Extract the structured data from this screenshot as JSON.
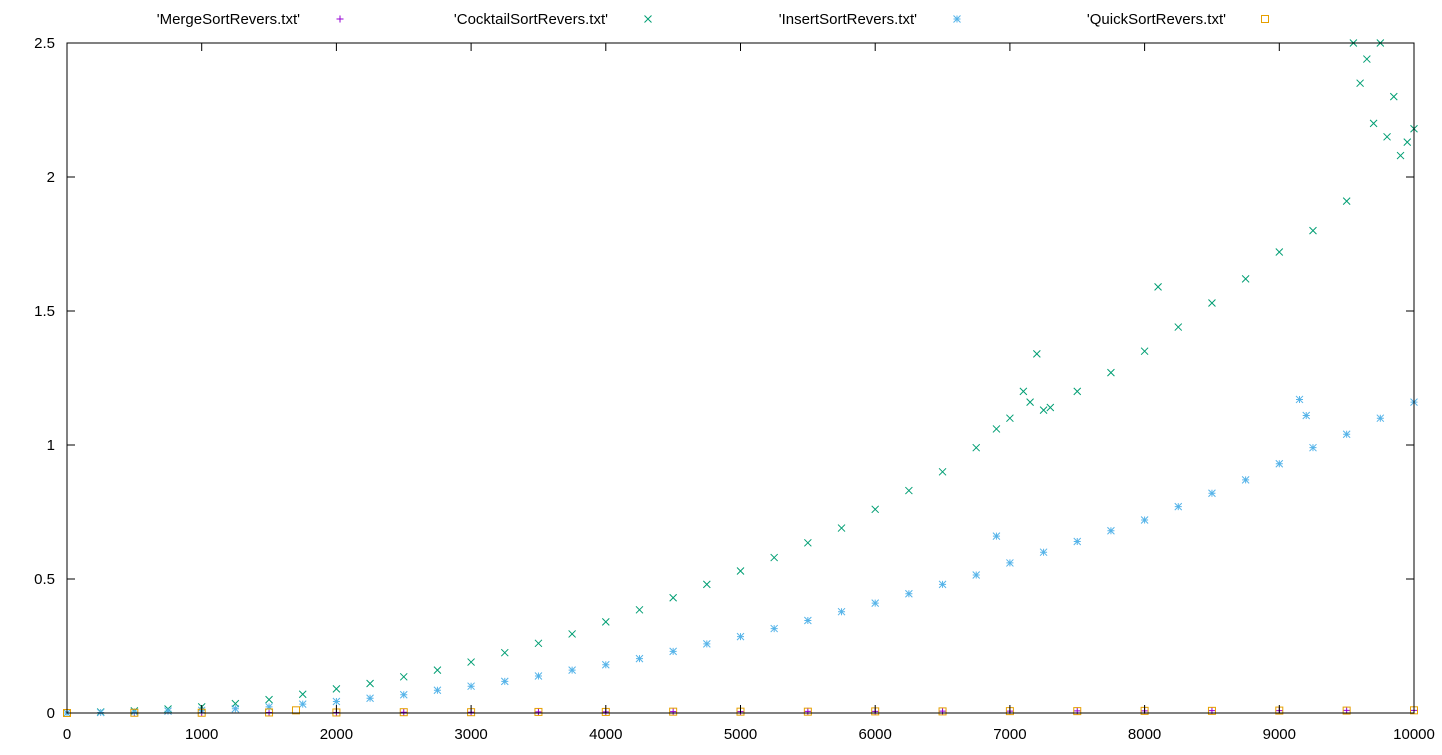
{
  "chart_data": {
    "type": "scatter",
    "xlim": [
      0,
      10000
    ],
    "ylim": [
      0,
      2.5
    ],
    "x_ticks": [
      0,
      1000,
      2000,
      3000,
      4000,
      5000,
      6000,
      7000,
      8000,
      9000,
      10000
    ],
    "y_ticks": [
      0,
      0.5,
      1,
      1.5,
      2,
      2.5
    ],
    "x_tick_labels": [
      "0",
      "1000",
      "2000",
      "3000",
      "4000",
      "5000",
      "6000",
      "7000",
      "8000",
      "9000",
      "10000"
    ],
    "y_tick_labels": [
      "0",
      "0.5",
      "1",
      "1.5",
      "2",
      "2.5"
    ],
    "grid": false,
    "legend_position": "top",
    "series": [
      {
        "name": "'MergeSortRevers.txt'",
        "marker": "plus",
        "color": "#9400d3",
        "x": [
          0,
          500,
          1000,
          1500,
          2000,
          2500,
          3000,
          3500,
          4000,
          4500,
          5000,
          5500,
          6000,
          6500,
          7000,
          7500,
          8000,
          8500,
          9000,
          9500,
          10000
        ],
        "y": [
          0,
          0.001,
          0.001,
          0.002,
          0.002,
          0.003,
          0.003,
          0.004,
          0.004,
          0.005,
          0.005,
          0.006,
          0.006,
          0.007,
          0.007,
          0.008,
          0.008,
          0.009,
          0.009,
          0.01,
          0.01
        ]
      },
      {
        "name": "'CocktailSortRevers.txt'",
        "marker": "cross",
        "color": "#009e73",
        "x": [
          0,
          250,
          500,
          750,
          1000,
          1250,
          1500,
          1750,
          2000,
          2250,
          2500,
          2750,
          3000,
          3250,
          3500,
          3750,
          4000,
          4250,
          4500,
          4750,
          5000,
          5250,
          5500,
          5750,
          6000,
          6250,
          6500,
          6750,
          6900,
          7000,
          7100,
          7150,
          7200,
          7250,
          7300,
          7500,
          7750,
          8000,
          8100,
          8250,
          8500,
          8750,
          9000,
          9250,
          9500,
          9550,
          9600,
          9650,
          9700,
          9750,
          9800,
          9850,
          9900,
          9950,
          10000
        ],
        "y": [
          0,
          0.004,
          0.008,
          0.015,
          0.023,
          0.035,
          0.05,
          0.07,
          0.09,
          0.11,
          0.135,
          0.16,
          0.19,
          0.225,
          0.26,
          0.295,
          0.34,
          0.385,
          0.43,
          0.48,
          0.53,
          0.58,
          0.635,
          0.69,
          0.76,
          0.83,
          0.9,
          0.99,
          1.06,
          1.1,
          1.2,
          1.16,
          1.34,
          1.13,
          1.14,
          1.2,
          1.27,
          1.35,
          1.59,
          1.44,
          1.53,
          1.62,
          1.72,
          1.8,
          1.91,
          2.5,
          2.35,
          2.44,
          2.2,
          2.5,
          2.15,
          2.3,
          2.08,
          2.13,
          2.18
        ]
      },
      {
        "name": "'InsertSortRevers.txt'",
        "marker": "star",
        "color": "#56b4e9",
        "x": [
          0,
          250,
          500,
          750,
          1000,
          1250,
          1500,
          1750,
          2000,
          2250,
          2500,
          2750,
          3000,
          3250,
          3500,
          3750,
          4000,
          4250,
          4500,
          4750,
          5000,
          5250,
          5500,
          5750,
          6000,
          6250,
          6500,
          6750,
          6900,
          7000,
          7250,
          7500,
          7750,
          8000,
          8250,
          8500,
          8750,
          9000,
          9150,
          9200,
          9250,
          9500,
          9750,
          10000
        ],
        "y": [
          0,
          0.002,
          0.004,
          0.007,
          0.01,
          0.016,
          0.023,
          0.033,
          0.043,
          0.055,
          0.068,
          0.085,
          0.1,
          0.118,
          0.138,
          0.16,
          0.18,
          0.203,
          0.23,
          0.258,
          0.285,
          0.315,
          0.345,
          0.378,
          0.41,
          0.445,
          0.48,
          0.515,
          0.66,
          0.56,
          0.6,
          0.64,
          0.68,
          0.72,
          0.77,
          0.82,
          0.87,
          0.93,
          1.17,
          1.11,
          0.99,
          1.04,
          1.1,
          1.16
        ]
      },
      {
        "name": "'QuickSortRevers.txt'",
        "marker": "square",
        "color": "#e69f00",
        "x": [
          0,
          500,
          1000,
          1500,
          1700,
          2000,
          2500,
          3000,
          3500,
          4000,
          4500,
          5000,
          5500,
          6000,
          6500,
          7000,
          7500,
          8000,
          8500,
          9000,
          9500,
          10000
        ],
        "y": [
          0,
          0.001,
          0.001,
          0.002,
          0.01,
          0.002,
          0.003,
          0.003,
          0.004,
          0.004,
          0.005,
          0.005,
          0.005,
          0.006,
          0.006,
          0.007,
          0.007,
          0.008,
          0.008,
          0.009,
          0.009,
          0.01
        ]
      }
    ]
  }
}
